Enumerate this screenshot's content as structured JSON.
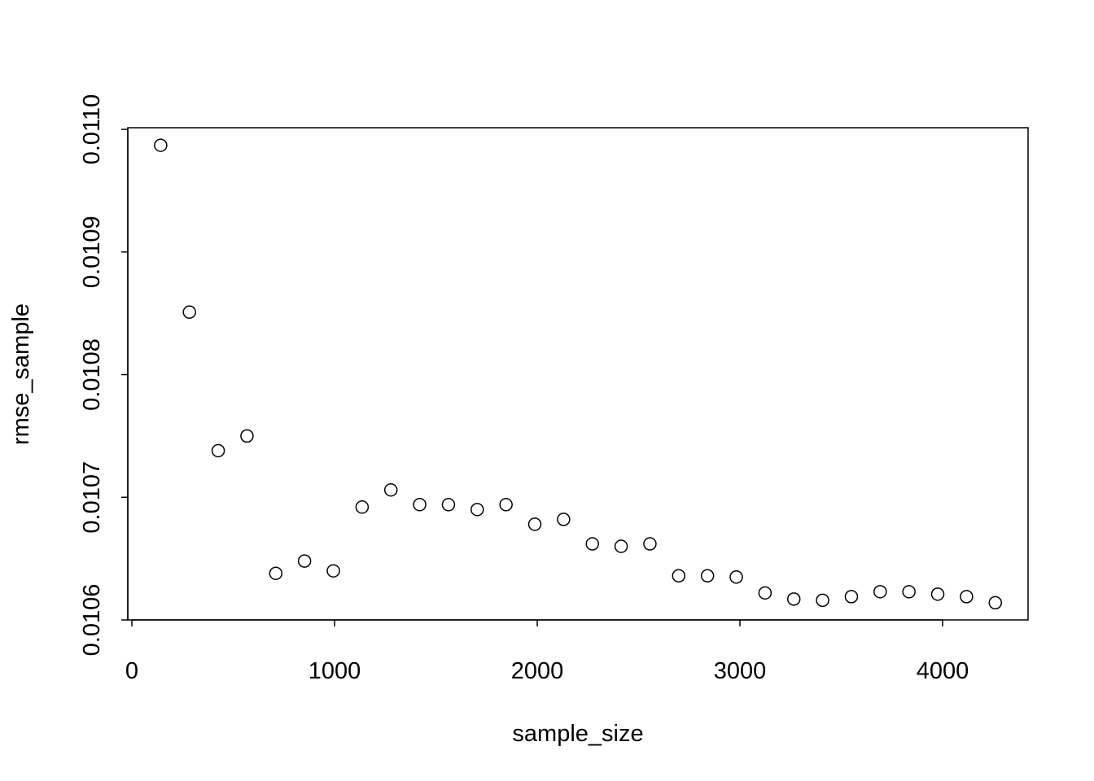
{
  "chart_data": {
    "type": "scatter",
    "title": "",
    "xlabel": "sample_size",
    "ylabel": "rmse_sample",
    "xlim": [
      0,
      4400
    ],
    "ylim": [
      0.0106,
      0.011
    ],
    "grid": false,
    "x_ticks": [
      0,
      1000,
      2000,
      3000,
      4000
    ],
    "x_tick_labels": [
      "0",
      "1000",
      "2000",
      "3000",
      "4000"
    ],
    "y_ticks": [
      0.0106,
      0.0107,
      0.0108,
      0.0109,
      0.011
    ],
    "y_tick_labels": [
      "0.0106",
      "0.0107",
      "0.0108",
      "0.0109",
      "0.0110"
    ],
    "series": [
      {
        "name": "rmse_sample",
        "x": [
          142,
          284,
          426,
          568,
          710,
          852,
          994,
          1136,
          1278,
          1420,
          1562,
          1704,
          1846,
          1988,
          2130,
          2272,
          2414,
          2556,
          2698,
          2840,
          2982,
          3124,
          3266,
          3408,
          3550,
          3692,
          3834,
          3976,
          4118,
          4260
        ],
        "y": [
          0.010987,
          0.010851,
          0.010738,
          0.01075,
          0.010638,
          0.010648,
          0.01064,
          0.010692,
          0.010706,
          0.010694,
          0.010694,
          0.01069,
          0.010694,
          0.010678,
          0.010682,
          0.010662,
          0.01066,
          0.010662,
          0.010636,
          0.010636,
          0.010635,
          0.010622,
          0.010617,
          0.010616,
          0.010619,
          0.010623,
          0.010623,
          0.010621,
          0.010619,
          0.010614
        ]
      }
    ]
  }
}
